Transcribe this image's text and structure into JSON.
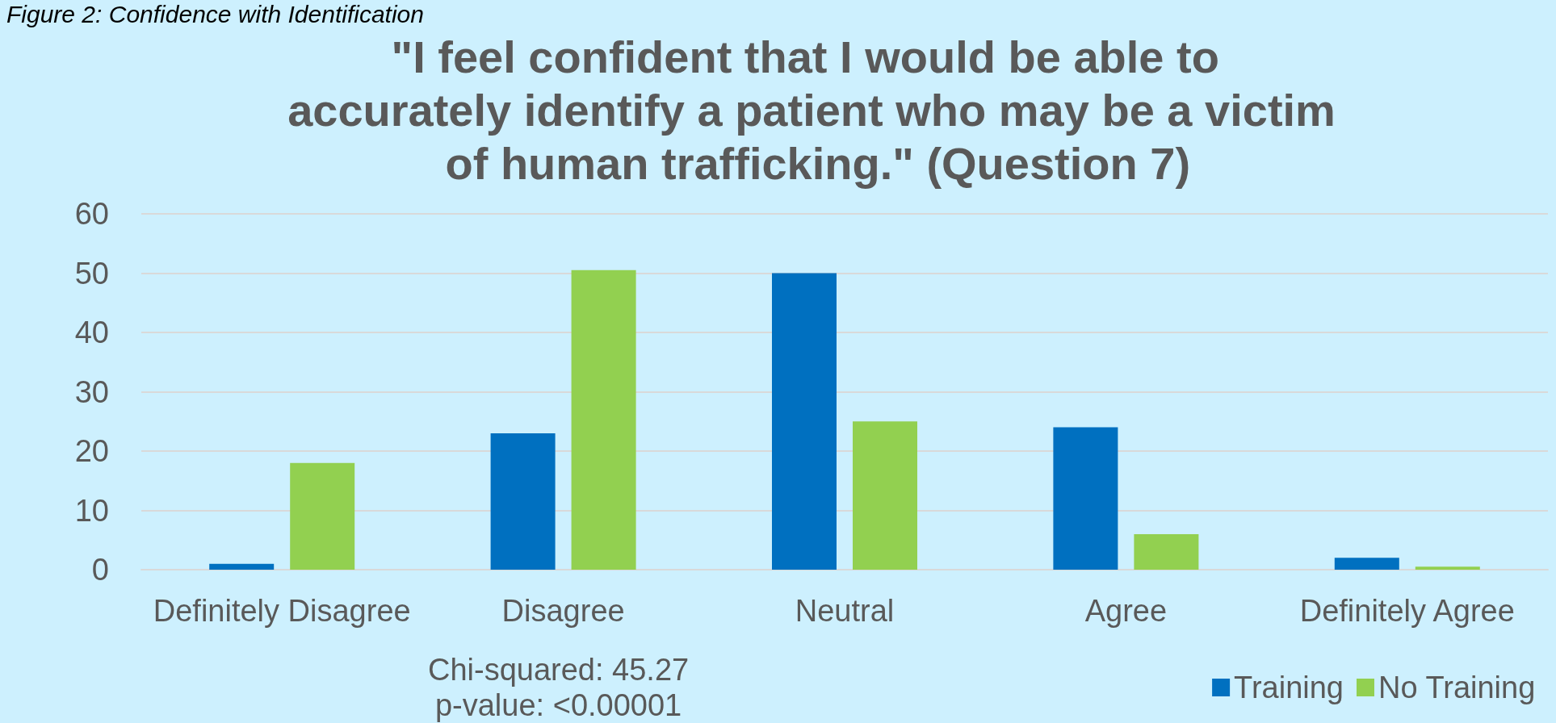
{
  "chart_data": {
    "type": "bar",
    "title": "\"I feel confident that I would be able to accurately identify a patient who may be a victim of human trafficking.\" (Question 7)",
    "annotations": [
      "Figure 2: Confidence with Identification",
      "Chi-squared: 45.27\np-value: <0.00001"
    ],
    "categories": [
      "Definitely Disagree",
      "Disagree",
      "Neutral",
      "Agree",
      "Definitely Agree"
    ],
    "series": [
      {
        "name": "Training",
        "color": "#0070c0",
        "values": [
          1,
          23,
          50,
          24,
          2
        ]
      },
      {
        "name": "No Training",
        "color": "#92d050",
        "values": [
          18,
          50.5,
          25,
          6,
          0.5
        ]
      }
    ],
    "ylim": [
      0,
      60
    ],
    "yticks": [
      0,
      10,
      20,
      30,
      40,
      50,
      60
    ],
    "grid": "y",
    "legend": "bottom right"
  }
}
